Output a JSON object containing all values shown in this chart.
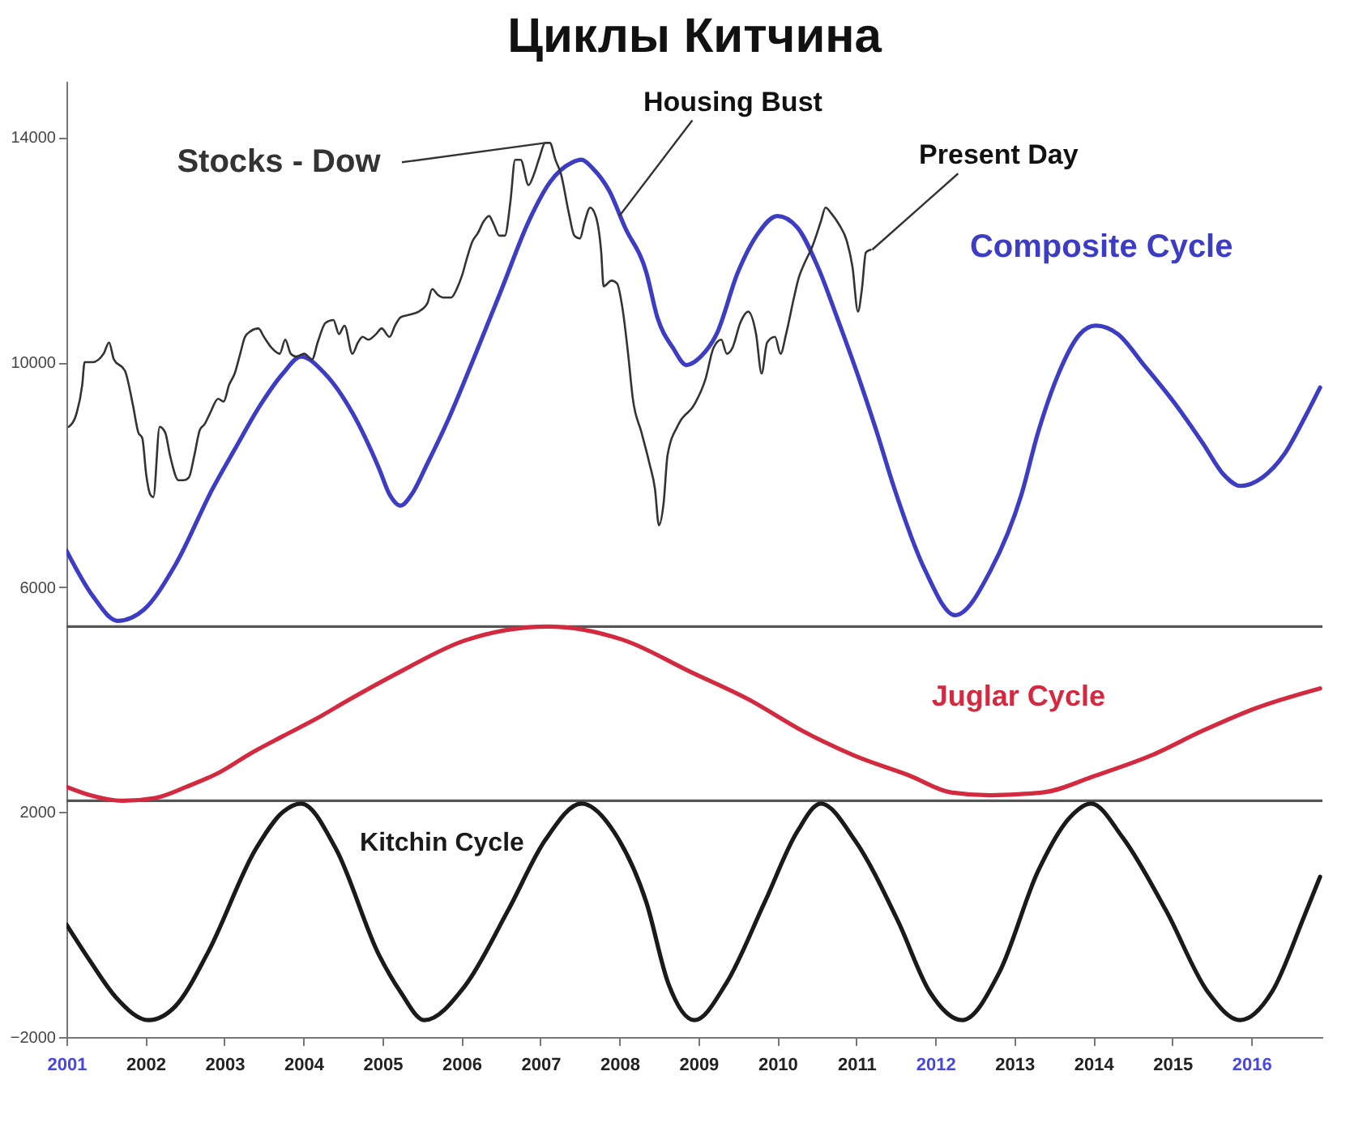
{
  "chart_data": {
    "type": "line",
    "title": "Циклы Китчина",
    "xlim": [
      2001,
      2016.9
    ],
    "xticks": [
      2001,
      2002,
      2003,
      2004,
      2005,
      2006,
      2007,
      2008,
      2009,
      2010,
      2011,
      2012,
      2013,
      2014,
      2015,
      2016
    ],
    "ylim": [
      -2000,
      15000
    ],
    "yticks": [
      -2000,
      2000,
      6000,
      10000,
      14000
    ],
    "series": [
      {
        "name": "Stocks - Dow",
        "color": "#333333",
        "x": [
          2001.03,
          2001.13,
          2001.2,
          2001.23,
          2001.33,
          2001.47,
          2001.54,
          2001.6,
          2001.74,
          2001.84,
          2001.91,
          2001.96,
          2002.01,
          2002.06,
          2002.1,
          2002.18,
          2002.25,
          2002.31,
          2002.42,
          2002.48,
          2002.55,
          2002.62,
          2002.69,
          2002.75,
          2002.82,
          2002.92,
          2002.99,
          2003.06,
          2003.13,
          2003.2,
          2003.26,
          2003.33,
          2003.43,
          2003.5,
          2003.6,
          2003.7,
          2003.77,
          2003.84,
          2003.91,
          2004.01,
          2004.11,
          2004.18,
          2004.28,
          2004.38,
          2004.45,
          2004.52,
          2004.62,
          2004.69,
          2004.75,
          2004.82,
          2004.92,
          2004.99,
          2005.09,
          2005.16,
          2005.23,
          2005.36,
          2005.46,
          2005.57,
          2005.63,
          2005.7,
          2005.77,
          2005.87,
          2005.94,
          2006.01,
          2006.07,
          2006.14,
          2006.21,
          2006.28,
          2006.35,
          2006.41,
          2006.48,
          2006.55,
          2006.62,
          2006.68,
          2006.75,
          2006.85,
          2006.92,
          2006.99,
          2007.06,
          2007.12,
          2007.19,
          2007.26,
          2007.36,
          2007.43,
          2007.5,
          2007.56,
          2007.63,
          2007.7,
          2007.77,
          2007.8,
          2007.9,
          2007.97,
          2008.04,
          2008.11,
          2008.17,
          2008.28,
          2008.38,
          2008.45,
          2008.5,
          2008.56,
          2008.61,
          2008.75,
          2008.95,
          2009.09,
          2009.19,
          2009.29,
          2009.36,
          2009.43,
          2009.53,
          2009.63,
          2009.73,
          2009.8,
          2009.87,
          2009.97,
          2010.04,
          2010.11,
          2010.21,
          2010.27,
          2010.34,
          2010.44,
          2010.55,
          2010.61,
          2010.68,
          2010.78,
          2010.88,
          2010.95,
          2011.02,
          2011.07,
          2011.12,
          2011.18
        ],
        "values": [
          8850,
          9100,
          9600,
          10000,
          10000,
          10150,
          10350,
          10050,
          9850,
          9250,
          8750,
          8650,
          8000,
          7650,
          7600,
          8850,
          8750,
          8350,
          7900,
          7900,
          7950,
          8350,
          8800,
          8900,
          9100,
          9350,
          9300,
          9600,
          9800,
          10150,
          10450,
          10550,
          10600,
          10450,
          10250,
          10150,
          10400,
          10150,
          10100,
          10150,
          10050,
          10350,
          10700,
          10750,
          10500,
          10650,
          10150,
          10350,
          10450,
          10400,
          10500,
          10600,
          10450,
          10650,
          10800,
          10850,
          10900,
          11050,
          11300,
          11200,
          11150,
          11150,
          11300,
          11550,
          11850,
          12150,
          12300,
          12500,
          12600,
          12450,
          12250,
          12250,
          12850,
          13600,
          13600,
          13150,
          13350,
          13650,
          13900,
          13900,
          13600,
          13350,
          12650,
          12250,
          12200,
          12500,
          12750,
          12600,
          11950,
          11350,
          11450,
          11400,
          10950,
          10150,
          9350,
          8750,
          8200,
          7750,
          7100,
          7500,
          8350,
          8900,
          9250,
          9700,
          10250,
          10400,
          10150,
          10250,
          10700,
          10900,
          10500,
          9800,
          10350,
          10450,
          10150,
          10500,
          11150,
          11500,
          11750,
          12050,
          12500,
          12750,
          12650,
          12450,
          12150,
          11700,
          10900,
          11300,
          11950,
          12000
        ]
      },
      {
        "name": "Composite Cycle",
        "color": "#3d3dc4",
        "x": [
          2001.0,
          2001.33,
          2001.65,
          2001.98,
          2002.38,
          2002.85,
          2003.13,
          2003.46,
          2003.74,
          2003.97,
          2004.27,
          2004.62,
          2004.96,
          2005.09,
          2005.23,
          2005.37,
          2005.57,
          2005.84,
          2006.18,
          2006.51,
          2006.85,
          2007.12,
          2007.4,
          2007.52,
          2007.66,
          2007.87,
          2008.07,
          2008.34,
          2008.48,
          2008.68,
          2008.85,
          2009.03,
          2009.23,
          2009.5,
          2009.76,
          2010.0,
          2010.25,
          2010.51,
          2010.78,
          2011.06,
          2011.26,
          2011.47,
          2011.87,
          2012.25,
          2012.7,
          2013.09,
          2013.3,
          2013.56,
          2013.83,
          2014.03,
          2014.31,
          2014.64,
          2015.04,
          2015.39,
          2015.65,
          2015.86,
          2016.14,
          2016.41,
          2016.67,
          2016.87
        ],
        "values": [
          6650,
          5850,
          5400,
          5600,
          6400,
          7750,
          8450,
          9250,
          9800,
          10100,
          9800,
          9100,
          8100,
          7650,
          7450,
          7650,
          8200,
          9000,
          10150,
          11300,
          12500,
          13200,
          13550,
          13600,
          13450,
          13050,
          12400,
          11600,
          10800,
          10250,
          9950,
          10100,
          10500,
          11600,
          12300,
          12600,
          12400,
          11700,
          10700,
          9600,
          8750,
          7800,
          6300,
          5500,
          6300,
          7650,
          8750,
          9800,
          10500,
          10650,
          10500,
          9950,
          9250,
          8550,
          8000,
          7800,
          7950,
          8350,
          9000,
          9550
        ]
      },
      {
        "name": "Juglar Cycle",
        "color": "#d42a40",
        "x": [
          2001.0,
          2001.3,
          2001.71,
          2002.12,
          2002.52,
          2002.93,
          2003.34,
          2003.74,
          2004.15,
          2004.58,
          2005.23,
          2006.04,
          2007.1,
          2008.07,
          2008.89,
          2009.64,
          2010.31,
          2010.98,
          2011.67,
          2012.2,
          2012.69,
          2013.36,
          2014.03,
          2014.72,
          2015.39,
          2016.06,
          2016.87
        ],
        "values": [
          2450,
          2300,
          2200,
          2250,
          2450,
          2700,
          3050,
          3350,
          3650,
          4000,
          4500,
          5050,
          5300,
          5050,
          4500,
          4000,
          3450,
          3000,
          2650,
          2350,
          2300,
          2350,
          2650,
          3000,
          3450,
          3850,
          4200
        ]
      },
      {
        "name": "Kitchin Cycle",
        "color": "#1a1a1a",
        "x": [
          2001.0,
          2001.3,
          2001.63,
          2002.04,
          2002.38,
          2002.79,
          2003.4,
          2003.74,
          2003.97,
          2004.41,
          2004.96,
          2005.23,
          2005.53,
          2006.04,
          2006.59,
          2007.06,
          2007.52,
          2007.93,
          2008.34,
          2008.62,
          2008.95,
          2009.35,
          2009.84,
          2010.25,
          2010.55,
          2010.98,
          2011.53,
          2011.93,
          2012.34,
          2012.81,
          2013.3,
          2013.7,
          2013.97,
          2014.37,
          2014.92,
          2015.45,
          2015.86,
          2016.26,
          2016.67,
          2016.87
        ],
        "values": [
          0,
          -650,
          -1300,
          -1700,
          -1450,
          -500,
          1350,
          2000,
          2150,
          1350,
          -550,
          -1200,
          -1700,
          -1100,
          250,
          1500,
          2150,
          1650,
          400,
          -1050,
          -1700,
          -1050,
          400,
          1650,
          2150,
          1500,
          50,
          -1200,
          -1700,
          -850,
          950,
          1900,
          2150,
          1550,
          250,
          -1200,
          -1700,
          -1200,
          150,
          850
        ]
      }
    ],
    "annotations": [
      {
        "text": "Housing Bust",
        "x": 2008.0,
        "y": 12600
      },
      {
        "text": "Present Day",
        "x": 2011.2,
        "y": 12000
      }
    ],
    "ref_lines": [
      {
        "axis": "y",
        "value": 5300,
        "color": "#555555"
      },
      {
        "axis": "y",
        "value": 2200,
        "color": "#555555"
      }
    ]
  }
}
